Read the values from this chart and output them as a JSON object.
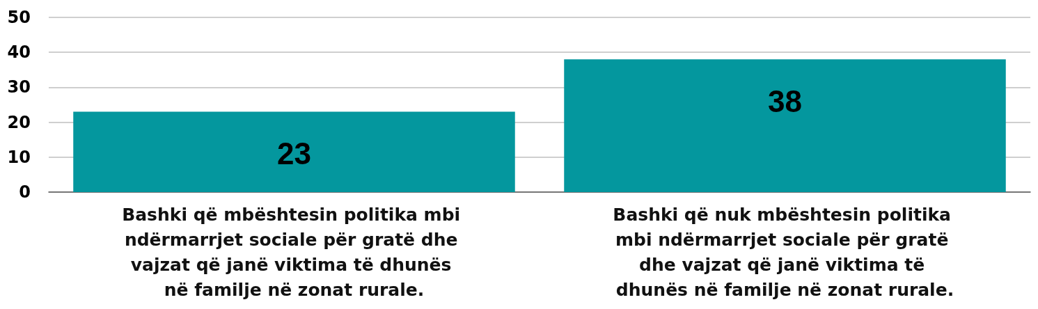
{
  "chart_data": {
    "type": "bar",
    "categories": [
      "Bashki që mbështesin politika mbi ndërmarrjet sociale për gratë dhe vajzat që janë viktima të dhunës në familje në zonat rurale.",
      "Bashki që nuk mbështesin politika mbi ndërmarrjet sociale për gratë dhe vajzat që janë viktima të dhunës në familje në zonat rurale."
    ],
    "values": [
      23,
      38
    ],
    "color": "#04979e",
    "ylim": [
      0,
      50
    ],
    "yticks": [
      0,
      10,
      20,
      30,
      40,
      50
    ],
    "grid": "y",
    "data_labels": true
  }
}
